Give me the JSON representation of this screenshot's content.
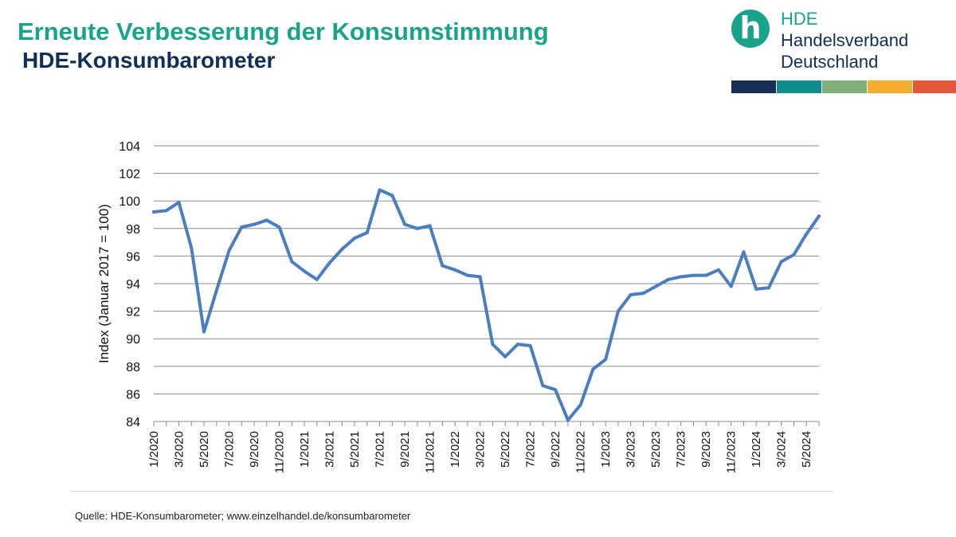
{
  "title": "Erneute Verbesserung der Konsumstimmung",
  "subtitle": "HDE-Konsumbarometer",
  "logo": {
    "icon": "hde-h-logo-icon",
    "line1": "HDE",
    "line2": "Handelsverband",
    "line3": "Deutschland",
    "bar_colors": [
      "#1a2f58",
      "#0f8c8c",
      "#7fb07a",
      "#f5ad2f",
      "#e4573a"
    ]
  },
  "source": "Quelle: HDE-Konsumbarometer; www.einzelhandel.de/konsumbarometer",
  "colors": {
    "line": "#4a7ebf",
    "grid": "#8c8c8c",
    "title": "#1aa38b",
    "subtitle": "#0f2f59"
  },
  "chart_data": {
    "type": "line",
    "title": "",
    "xlabel": "",
    "ylabel": "Index (Januar 2017 = 100)",
    "ylim": [
      84,
      104
    ],
    "yticks": [
      84,
      86,
      88,
      90,
      92,
      94,
      96,
      98,
      100,
      102,
      104
    ],
    "grid": true,
    "x": [
      "1/2020",
      "2/2020",
      "3/2020",
      "4/2020",
      "5/2020",
      "6/2020",
      "7/2020",
      "8/2020",
      "9/2020",
      "10/2020",
      "11/2020",
      "12/2020",
      "1/2021",
      "2/2021",
      "3/2021",
      "4/2021",
      "5/2021",
      "6/2021",
      "7/2021",
      "8/2021",
      "9/2021",
      "10/2021",
      "11/2021",
      "12/2021",
      "1/2022",
      "2/2022",
      "3/2022",
      "4/2022",
      "5/2022",
      "6/2022",
      "7/2022",
      "8/2022",
      "9/2022",
      "10/2022",
      "11/2022",
      "12/2022",
      "1/2023",
      "2/2023",
      "3/2023",
      "4/2023",
      "5/2023",
      "6/2023",
      "7/2023",
      "8/2023",
      "9/2023",
      "10/2023",
      "11/2023",
      "12/2023",
      "1/2024",
      "2/2024",
      "3/2024",
      "4/2024",
      "5/2024",
      "6/2024"
    ],
    "xtick_labels": [
      "1/2020",
      "3/2020",
      "5/2020",
      "7/2020",
      "9/2020",
      "11/2020",
      "1/2021",
      "3/2021",
      "5/2021",
      "7/2021",
      "9/2021",
      "11/2021",
      "1/2022",
      "3/2022",
      "5/2022",
      "7/2022",
      "9/2022",
      "11/2022",
      "1/2023",
      "3/2023",
      "5/2023",
      "7/2023",
      "9/2023",
      "11/2023",
      "1/2024",
      "3/2024",
      "5/2024"
    ],
    "series": [
      {
        "values": [
          99.2,
          99.3,
          99.9,
          96.6,
          90.5,
          93.5,
          96.4,
          98.1,
          98.3,
          98.6,
          98.1,
          95.6,
          94.9,
          94.3,
          95.5,
          96.5,
          97.3,
          97.7,
          100.8,
          100.4,
          98.3,
          98.0,
          98.2,
          95.3,
          95.0,
          94.6,
          94.5,
          89.6,
          88.7,
          89.6,
          89.5,
          86.6,
          86.3,
          84.1,
          85.2,
          87.8,
          88.5,
          92.0,
          93.2,
          93.3,
          93.8,
          94.3,
          94.5,
          94.6,
          94.6,
          95.0,
          93.8,
          96.3,
          93.6,
          93.7,
          95.6,
          96.1,
          97.6,
          98.9
        ]
      }
    ]
  }
}
